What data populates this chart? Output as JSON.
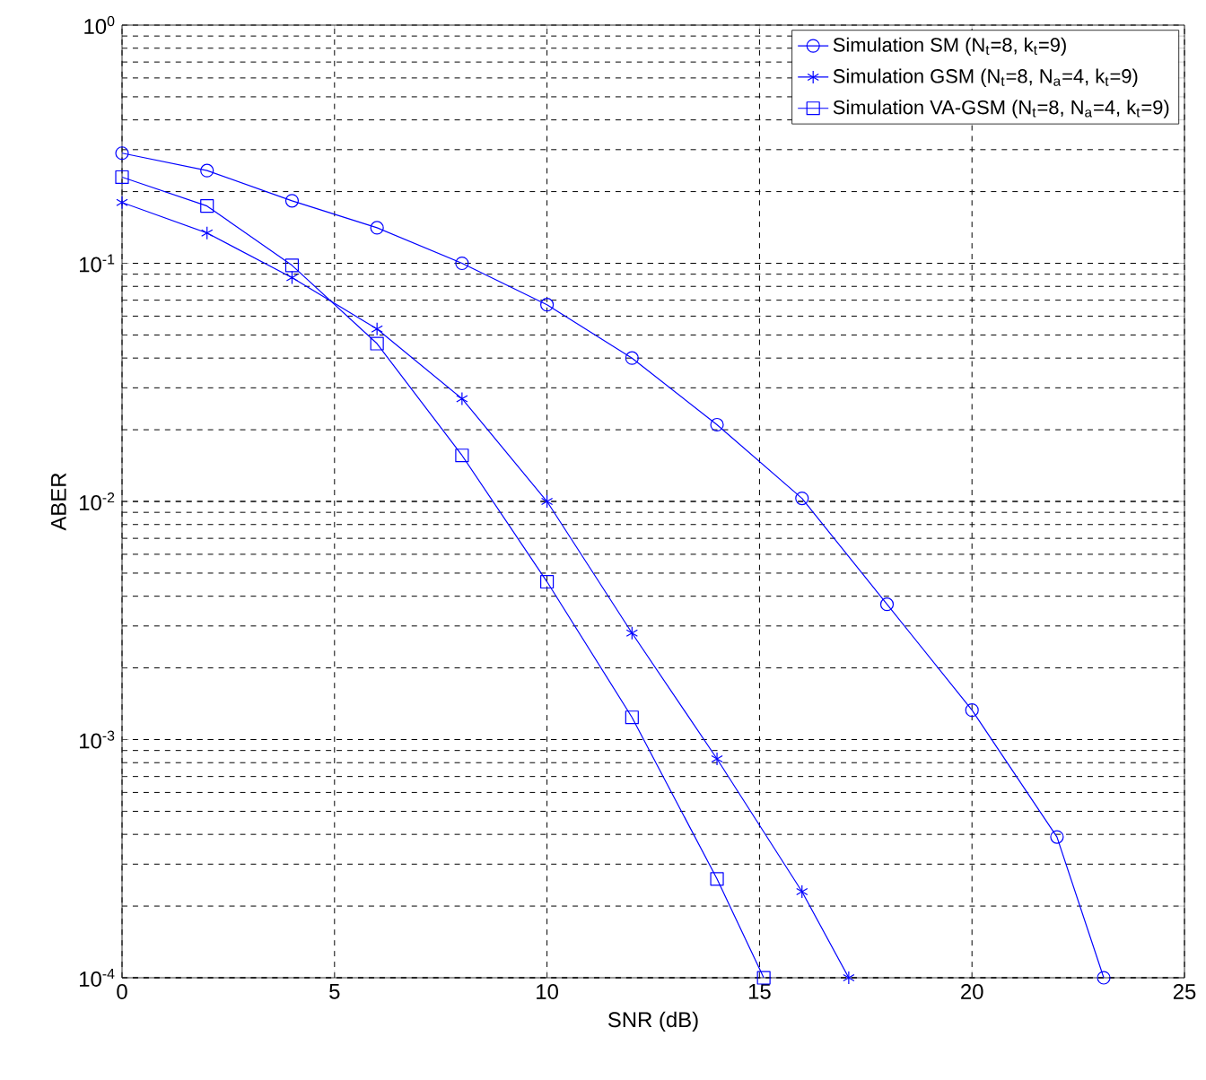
{
  "chart_data": {
    "type": "line",
    "xlabel": "SNR (dB)",
    "ylabel": "ABER",
    "log": "y",
    "xlim": [
      0,
      25
    ],
    "xticks": [
      0,
      5,
      10,
      15,
      20,
      25
    ],
    "ylim": [
      0.0001,
      1
    ],
    "yticks": [
      {
        "value": 0.0001,
        "label": "10$^{-4}$"
      },
      {
        "value": 0.001,
        "label": "10$^{-3}$"
      },
      {
        "value": 0.01,
        "label": "10$^{-2}$"
      },
      {
        "value": 0.1,
        "label": "10$^{-1}$"
      },
      {
        "value": 1,
        "label": "10$^{0}$"
      }
    ],
    "grid": true,
    "legend": "top right",
    "line_style": "solid",
    "series": [
      {
        "name": "Simulation SM (N$_{t}$=8, k$_{t}$=9)",
        "color": "#0000ff",
        "marker": "circle",
        "x": [
          0,
          2,
          4,
          6,
          8,
          10,
          12,
          14,
          16,
          18,
          20,
          22,
          23.1
        ],
        "values": [
          0.29,
          0.245,
          0.183,
          0.141,
          0.1,
          0.067,
          0.04,
          0.021,
          0.0103,
          0.0037,
          0.00133,
          0.00039,
          0.0001
        ]
      },
      {
        "name": "Simulation GSM (N$_{t}$=8, N$_{a}$=4, k$_{t}$=9)",
        "color": "#0000ff",
        "marker": "cross",
        "x": [
          0,
          2,
          4,
          6,
          8,
          10,
          12,
          14,
          16,
          17.1
        ],
        "values": [
          0.18,
          0.134,
          0.087,
          0.053,
          0.027,
          0.01,
          0.0028,
          0.00083,
          0.00023,
          0.0001
        ]
      },
      {
        "name": "Simulation VA-GSM (N$_{t}$=8, N$_{a}$=4, k$_{t}$=9)",
        "color": "#0000ff",
        "marker": "square",
        "x": [
          0,
          2,
          4,
          6,
          8,
          10,
          12,
          14,
          15.1
        ],
        "values": [
          0.23,
          0.174,
          0.098,
          0.046,
          0.0156,
          0.0046,
          0.00124,
          0.00026,
          0.0001
        ]
      }
    ]
  }
}
